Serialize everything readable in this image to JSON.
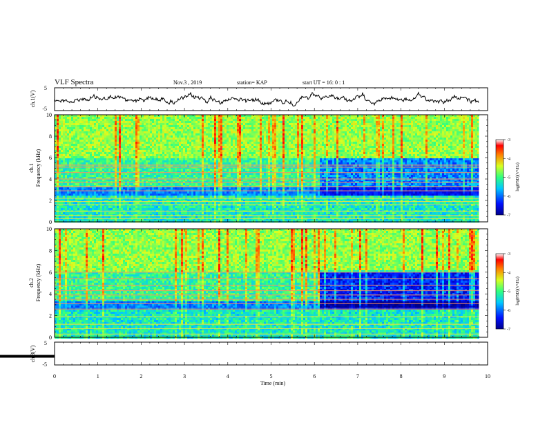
{
  "header": {
    "title": "VLF Spectra",
    "date": "Nov.3  , 2019",
    "station": "station= KAP",
    "start": "start  UT =   16: 0  : 1"
  },
  "chart_data": [
    {
      "type": "line",
      "ylabel": "ch.1(V)",
      "ylim": [
        -5,
        5
      ],
      "y_ticks": [
        "5",
        "-5"
      ],
      "xlim": [
        0,
        10
      ],
      "description_style": "noisy waveform"
    },
    {
      "type": "heatmap",
      "ylabel": "ch.1\nFrequency  (kHz)",
      "ylabel_parts": [
        "ch.1",
        "Frequency  (kHz)"
      ],
      "ylim": [
        0,
        10
      ],
      "y_ticks": [
        "0",
        "2",
        "4",
        "6",
        "8",
        "10"
      ],
      "xlim": [
        0,
        10
      ],
      "data_end_min": 9.8,
      "colorbar": {
        "label": "log(PSD)(V²/Hz)",
        "range": [
          -7,
          -3
        ],
        "ticks": [
          "-3",
          "-4",
          "-5",
          "-6",
          "-7"
        ]
      },
      "change_time_min": 6.1,
      "bands_khz": [
        0.3,
        0.6,
        1.0,
        1.6,
        1.9,
        2.2,
        2.9,
        3.3,
        3.7,
        4.0,
        4.6,
        5.1,
        5.3
      ]
    },
    {
      "type": "heatmap",
      "ylabel": "ch.2\nFrequency  (kHz)",
      "ylabel_parts": [
        "ch.2",
        "Frequency  (kHz)"
      ],
      "ylim": [
        0,
        10
      ],
      "y_ticks": [
        "0",
        "2",
        "4",
        "6",
        "8",
        "10"
      ],
      "xlim": [
        0,
        10
      ],
      "data_end_min": 9.8,
      "colorbar": {
        "label": "log(PSD)(V²/Hz)",
        "range": [
          -7,
          -3
        ],
        "ticks": [
          "-3",
          "-4",
          "-5",
          "-6",
          "-7"
        ]
      },
      "change_time_min": 6.1,
      "bands_khz": [
        0.3,
        0.8,
        1.2,
        1.9,
        2.6,
        3.1,
        3.5,
        3.9,
        4.3,
        4.8,
        5.4,
        6.0
      ]
    },
    {
      "type": "line",
      "ylabel": "ch.3(V)",
      "ylim": [
        -5,
        5
      ],
      "y_ticks": [
        "5",
        "-5"
      ],
      "xlim": [
        0,
        10
      ],
      "values_const": -1.2,
      "xlabel": "Time  (min)",
      "x_ticks": [
        "0",
        "1",
        "2",
        "3",
        "4",
        "5",
        "6",
        "7",
        "8",
        "9",
        "10"
      ]
    }
  ]
}
